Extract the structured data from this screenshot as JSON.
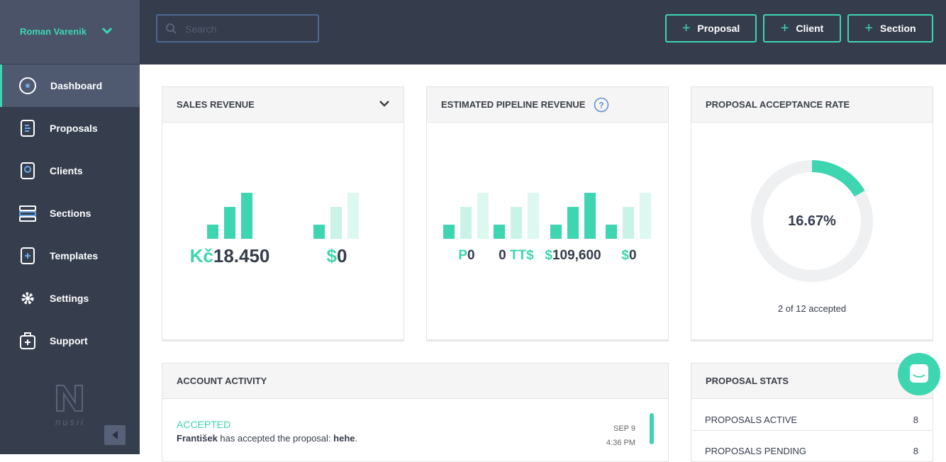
{
  "sidebar": {
    "user": "Roman Varenik",
    "nav": [
      "Dashboard",
      "Proposals",
      "Clients",
      "Sections",
      "Templates",
      "Settings",
      "Support"
    ],
    "logo": "nusii"
  },
  "header": {
    "search_placeholder": "Search",
    "buttons": [
      "Proposal",
      "Client",
      "Section"
    ]
  },
  "sales_revenue": {
    "title": "SALES REVENUE",
    "amounts": [
      [
        {
          "text": "Kč",
          "accent": true
        },
        {
          "text": "18.450"
        }
      ],
      [
        {
          "text": "$",
          "accent": true
        },
        {
          "text": "0"
        }
      ]
    ]
  },
  "pipeline_revenue": {
    "title": "ESTIMATED PIPELINE REVENUE",
    "amounts": [
      [
        {
          "text": "P",
          "accent": true
        },
        {
          "text": "0"
        }
      ],
      [
        {
          "text": "0"
        },
        {
          "text": " TT$",
          "accent": true
        }
      ],
      [
        {
          "text": "$",
          "accent": true
        },
        {
          "text": "109,600"
        }
      ],
      [
        {
          "text": "$",
          "accent": true
        },
        {
          "text": "0"
        }
      ]
    ]
  },
  "acceptance_rate": {
    "title": "PROPOSAL ACCEPTANCE RATE",
    "rate": 16.67,
    "value_label": "16.67%",
    "caption": "2 of 12 accepted"
  },
  "account_activity": {
    "title": "ACCOUNT ACTIVITY",
    "items": [
      {
        "status": "ACCEPTED",
        "message": [
          {
            "text": "František",
            "bold": true
          },
          {
            "text": " has accepted the proposal: "
          },
          {
            "text": "hehe",
            "bold": true
          },
          {
            "text": "."
          }
        ],
        "date": "SEP 9",
        "time": "4:36 PM"
      }
    ]
  },
  "proposal_stats": {
    "title": "PROPOSAL STATS",
    "rows": [
      {
        "label": "PROPOSALS ACTIVE",
        "value": 8
      },
      {
        "label": "PROPOSALS PENDING",
        "value": 8
      }
    ]
  }
}
